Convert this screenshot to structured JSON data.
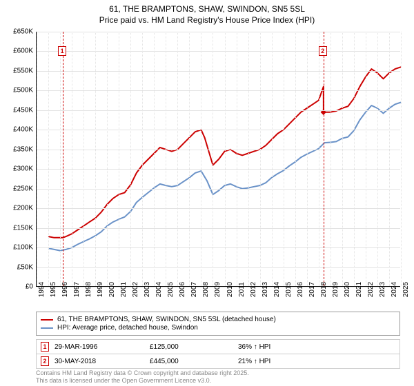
{
  "title_line1": "61, THE BRAMPTONS, SHAW, SWINDON, SN5 5SL",
  "title_line2": "Price paid vs. HM Land Registry's House Price Index (HPI)",
  "chart": {
    "type": "line",
    "background_color": "#ffffff",
    "grid_color": "#e3e3e3",
    "axis_color": "#000000",
    "line_width": 2,
    "xlim": [
      1994,
      2025
    ],
    "ylim": [
      0,
      650000
    ],
    "ytick_step": 50000,
    "yticks": [
      "£0",
      "£50K",
      "£100K",
      "£150K",
      "£200K",
      "£250K",
      "£300K",
      "£350K",
      "£400K",
      "£450K",
      "£500K",
      "£550K",
      "£600K",
      "£650K"
    ],
    "xticks": [
      "1994",
      "1995",
      "1996",
      "1997",
      "1998",
      "1999",
      "2000",
      "2001",
      "2002",
      "2003",
      "2004",
      "2005",
      "2006",
      "2007",
      "2008",
      "2009",
      "2010",
      "2011",
      "2012",
      "2013",
      "2014",
      "2015",
      "2016",
      "2017",
      "2018",
      "2019",
      "2020",
      "2021",
      "2022",
      "2023",
      "2024",
      "2025"
    ],
    "series": [
      {
        "name": "61, THE BRAMPTONS, SHAW, SWINDON, SN5 5SL (detached house)",
        "color": "#cc0000",
        "data": [
          [
            1995.0,
            128000
          ],
          [
            1995.5,
            125000
          ],
          [
            1996.24,
            125000
          ],
          [
            1996.5,
            128000
          ],
          [
            1997.0,
            135000
          ],
          [
            1997.5,
            145000
          ],
          [
            1998.0,
            155000
          ],
          [
            1998.5,
            165000
          ],
          [
            1999.0,
            175000
          ],
          [
            1999.5,
            190000
          ],
          [
            2000.0,
            210000
          ],
          [
            2000.5,
            225000
          ],
          [
            2001.0,
            235000
          ],
          [
            2001.5,
            240000
          ],
          [
            2002.0,
            260000
          ],
          [
            2002.5,
            290000
          ],
          [
            2003.0,
            310000
          ],
          [
            2003.5,
            325000
          ],
          [
            2004.0,
            340000
          ],
          [
            2004.5,
            355000
          ],
          [
            2005.0,
            350000
          ],
          [
            2005.5,
            345000
          ],
          [
            2006.0,
            350000
          ],
          [
            2006.5,
            365000
          ],
          [
            2007.0,
            380000
          ],
          [
            2007.5,
            395000
          ],
          [
            2008.0,
            400000
          ],
          [
            2008.3,
            380000
          ],
          [
            2008.7,
            340000
          ],
          [
            2009.0,
            310000
          ],
          [
            2009.5,
            325000
          ],
          [
            2010.0,
            345000
          ],
          [
            2010.5,
            350000
          ],
          [
            2011.0,
            340000
          ],
          [
            2011.5,
            335000
          ],
          [
            2012.0,
            340000
          ],
          [
            2012.5,
            345000
          ],
          [
            2013.0,
            350000
          ],
          [
            2013.5,
            360000
          ],
          [
            2014.0,
            375000
          ],
          [
            2014.5,
            390000
          ],
          [
            2015.0,
            400000
          ],
          [
            2015.5,
            415000
          ],
          [
            2016.0,
            430000
          ],
          [
            2016.5,
            445000
          ],
          [
            2017.0,
            455000
          ],
          [
            2017.5,
            465000
          ],
          [
            2018.0,
            475000
          ],
          [
            2018.41,
            510000
          ],
          [
            2018.42,
            445000
          ],
          [
            2018.5,
            445000
          ],
          [
            2019.0,
            445000
          ],
          [
            2019.5,
            448000
          ],
          [
            2020.0,
            455000
          ],
          [
            2020.5,
            460000
          ],
          [
            2021.0,
            480000
          ],
          [
            2021.5,
            510000
          ],
          [
            2022.0,
            535000
          ],
          [
            2022.5,
            555000
          ],
          [
            2023.0,
            545000
          ],
          [
            2023.5,
            530000
          ],
          [
            2024.0,
            545000
          ],
          [
            2024.5,
            555000
          ],
          [
            2025.0,
            560000
          ]
        ]
      },
      {
        "name": "HPI: Average price, detached house, Swindon",
        "color": "#6a92c8",
        "data": [
          [
            1995.0,
            98000
          ],
          [
            1995.5,
            95000
          ],
          [
            1996.0,
            92000
          ],
          [
            1996.5,
            95000
          ],
          [
            1997.0,
            100000
          ],
          [
            1997.5,
            108000
          ],
          [
            1998.0,
            115000
          ],
          [
            1998.5,
            122000
          ],
          [
            1999.0,
            130000
          ],
          [
            1999.5,
            140000
          ],
          [
            2000.0,
            155000
          ],
          [
            2000.5,
            165000
          ],
          [
            2001.0,
            172000
          ],
          [
            2001.5,
            178000
          ],
          [
            2002.0,
            192000
          ],
          [
            2002.5,
            215000
          ],
          [
            2003.0,
            228000
          ],
          [
            2003.5,
            240000
          ],
          [
            2004.0,
            252000
          ],
          [
            2004.5,
            262000
          ],
          [
            2005.0,
            258000
          ],
          [
            2005.5,
            255000
          ],
          [
            2006.0,
            258000
          ],
          [
            2006.5,
            268000
          ],
          [
            2007.0,
            278000
          ],
          [
            2007.5,
            290000
          ],
          [
            2008.0,
            295000
          ],
          [
            2008.5,
            270000
          ],
          [
            2009.0,
            235000
          ],
          [
            2009.5,
            245000
          ],
          [
            2010.0,
            258000
          ],
          [
            2010.5,
            262000
          ],
          [
            2011.0,
            255000
          ],
          [
            2011.5,
            250000
          ],
          [
            2012.0,
            252000
          ],
          [
            2012.5,
            255000
          ],
          [
            2013.0,
            258000
          ],
          [
            2013.5,
            265000
          ],
          [
            2014.0,
            278000
          ],
          [
            2014.5,
            288000
          ],
          [
            2015.0,
            296000
          ],
          [
            2015.5,
            308000
          ],
          [
            2016.0,
            318000
          ],
          [
            2016.5,
            330000
          ],
          [
            2017.0,
            338000
          ],
          [
            2017.5,
            345000
          ],
          [
            2018.0,
            352000
          ],
          [
            2018.5,
            367000
          ],
          [
            2019.0,
            368000
          ],
          [
            2019.5,
            370000
          ],
          [
            2020.0,
            378000
          ],
          [
            2020.5,
            382000
          ],
          [
            2021.0,
            398000
          ],
          [
            2021.5,
            425000
          ],
          [
            2022.0,
            445000
          ],
          [
            2022.5,
            462000
          ],
          [
            2023.0,
            455000
          ],
          [
            2023.5,
            442000
          ],
          [
            2024.0,
            455000
          ],
          [
            2024.5,
            465000
          ],
          [
            2025.0,
            470000
          ]
        ]
      }
    ],
    "markers": [
      {
        "n": "1",
        "x": 1996.24,
        "y_box": 600000,
        "color": "#cc0000"
      },
      {
        "n": "2",
        "x": 2018.41,
        "y_box": 600000,
        "color": "#cc0000"
      }
    ]
  },
  "legend": {
    "items": [
      {
        "label": "61, THE BRAMPTONS, SHAW, SWINDON, SN5 5SL (detached house)",
        "color": "#cc0000"
      },
      {
        "label": "HPI: Average price, detached house, Swindon",
        "color": "#6a92c8"
      }
    ]
  },
  "transactions": [
    {
      "n": "1",
      "color": "#cc0000",
      "date": "29-MAR-1996",
      "price": "£125,000",
      "pct": "36% ↑ HPI"
    },
    {
      "n": "2",
      "color": "#cc0000",
      "date": "30-MAY-2018",
      "price": "£445,000",
      "pct": "21% ↑ HPI"
    }
  ],
  "attribution_line1": "Contains HM Land Registry data © Crown copyright and database right 2025.",
  "attribution_line2": "This data is licensed under the Open Government Licence v3.0."
}
